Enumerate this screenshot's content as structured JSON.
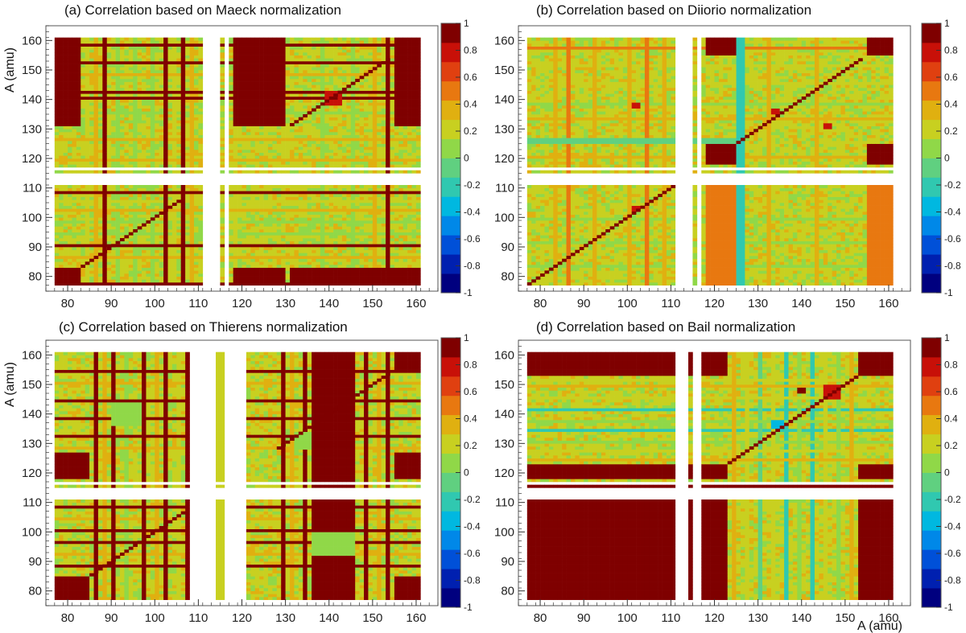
{
  "figure": {
    "xlabel": "A (amu)",
    "ylabel": "A (amu)"
  },
  "chart_data": [
    {
      "type": "heatmap",
      "title": "(a)  Correlation based on Maeck normalization",
      "xlabel": "A (amu)",
      "ylabel": "A (amu)",
      "xlim": [
        75,
        165
      ],
      "ylim": [
        75,
        165
      ],
      "xticks": [
        80,
        90,
        100,
        110,
        120,
        130,
        140,
        150,
        160
      ],
      "yticks": [
        80,
        90,
        100,
        110,
        120,
        130,
        140,
        150,
        160
      ],
      "colorbar": {
        "range": [
          -1,
          1
        ],
        "ticks": [
          "1",
          "0.8",
          "0.6",
          "0.4",
          "0.2",
          "0",
          "-0.2",
          "-0.4",
          "-0.6",
          "-0.8",
          "-1"
        ]
      },
      "palette": [
        "#00007f",
        "#0020b0",
        "#0050d8",
        "#0088e8",
        "#00b8e0",
        "#30c8b0",
        "#60d080",
        "#90d848",
        "#c8d020",
        "#e0b010",
        "#e87810",
        "#e04010",
        "#c81008",
        "#7f0000"
      ],
      "mass_range": [
        77,
        161
      ],
      "x_gaps": [
        [
          111,
          115
        ],
        [
          116,
          117
        ]
      ],
      "y_gaps": [
        [
          111,
          115
        ],
        [
          116,
          117
        ]
      ],
      "diagonal": [
        [
          83,
          106
        ],
        [
          131,
          154
        ]
      ],
      "blocks": [
        {
          "x": [
            77,
            83
          ],
          "y": [
            131,
            161
          ],
          "value": 1
        },
        {
          "x": [
            131,
            161
          ],
          "y": [
            77,
            83
          ],
          "value": 1
        },
        {
          "x": [
            77,
            83
          ],
          "y": [
            77,
            83
          ],
          "value": 1
        },
        {
          "x": [
            155,
            161
          ],
          "y": [
            131,
            161
          ],
          "value": 1
        },
        {
          "x": [
            155,
            161
          ],
          "y": [
            77,
            83
          ],
          "value": 1
        },
        {
          "x": [
            118,
            130
          ],
          "y": [
            131,
            161
          ],
          "value": 1
        },
        {
          "x": [
            118,
            130
          ],
          "y": [
            77,
            83
          ],
          "value": 1
        }
      ],
      "row_values": [
        {
          "a": 77,
          "value": 1
        },
        {
          "a": 86,
          "value": 0.3
        },
        {
          "a": 90,
          "value": 1
        },
        {
          "a": 94,
          "value": 0.1
        },
        {
          "a": 98,
          "value": 0.05
        },
        {
          "a": 102,
          "value": 0.3
        },
        {
          "a": 105,
          "value": 0.2
        },
        {
          "a": 108,
          "value": 0.9
        },
        {
          "a": 119,
          "value": 0.3
        },
        {
          "a": 126,
          "value": 0.3
        },
        {
          "a": 135,
          "value": 0.1
        },
        {
          "a": 140,
          "value": 1
        },
        {
          "a": 142,
          "value": 1
        },
        {
          "a": 148,
          "value": 0.3
        },
        {
          "a": 152,
          "value": 1
        },
        {
          "a": 158,
          "value": 1
        }
      ],
      "col_values": [
        {
          "a": 84,
          "value": 0.25
        },
        {
          "a": 86,
          "value": 0.3
        },
        {
          "a": 88,
          "value": 1
        },
        {
          "a": 91,
          "value": 0.05
        },
        {
          "a": 95,
          "value": 0.1
        },
        {
          "a": 99,
          "value": 0.05
        },
        {
          "a": 102,
          "value": 1
        },
        {
          "a": 104,
          "value": 0.2
        },
        {
          "a": 106,
          "value": 1
        },
        {
          "a": 108,
          "value": 0.3
        },
        {
          "a": 118,
          "value": 0.25
        },
        {
          "a": 138,
          "value": 0.05
        },
        {
          "a": 145,
          "value": 0.05
        },
        {
          "a": 150,
          "value": 0.3
        },
        {
          "a": 153,
          "value": 1
        }
      ],
      "hot_spots": [
        {
          "x": [
            139,
            143
          ],
          "y": [
            138,
            143
          ],
          "value": 0.8
        },
        {
          "x": [
            141,
            142
          ],
          "y": [
            140,
            141
          ],
          "value": 1
        }
      ]
    },
    {
      "type": "heatmap",
      "title": "(b)  Correlation based on Diiorio normalization",
      "xlabel": "",
      "ylabel": "",
      "xlim": [
        75,
        165
      ],
      "ylim": [
        75,
        165
      ],
      "xticks": [
        80,
        90,
        100,
        110,
        120,
        130,
        140,
        150,
        160
      ],
      "yticks": [
        80,
        90,
        100,
        110,
        120,
        130,
        140,
        150,
        160
      ],
      "colorbar": {
        "range": [
          -1,
          1
        ],
        "ticks": [
          "1",
          "0.8",
          "0.6",
          "0.4",
          "0.2",
          "0",
          "-0.2",
          "-0.4",
          "-0.6",
          "-0.8",
          "-1"
        ]
      },
      "palette": [
        "#00007f",
        "#0020b0",
        "#0050d8",
        "#0088e8",
        "#00b8e0",
        "#30c8b0",
        "#60d080",
        "#90d848",
        "#c8d020",
        "#e0b010",
        "#e87810",
        "#e04010",
        "#c81008",
        "#7f0000"
      ],
      "mass_range": [
        77,
        161
      ],
      "x_gaps": [
        [
          111,
          115
        ],
        [
          116,
          117
        ]
      ],
      "y_gaps": [
        [
          111,
          115
        ],
        [
          116,
          117
        ]
      ],
      "diagonal": [
        [
          77,
          111
        ],
        [
          125,
          154
        ]
      ],
      "blocks": [
        {
          "x": [
            118,
            125
          ],
          "y": [
            118,
            125
          ],
          "value": 1
        },
        {
          "x": [
            155,
            161
          ],
          "y": [
            155,
            161
          ],
          "value": 1
        },
        {
          "x": [
            118,
            125
          ],
          "y": [
            155,
            161
          ],
          "value": 1
        },
        {
          "x": [
            155,
            161
          ],
          "y": [
            118,
            125
          ],
          "value": 1
        },
        {
          "x": [
            155,
            161
          ],
          "y": [
            77,
            111
          ],
          "value": 0.5
        },
        {
          "x": [
            118,
            125
          ],
          "y": [
            77,
            111
          ],
          "value": 0.5
        },
        {
          "x": [
            125,
            127
          ],
          "y": [
            77,
            161
          ],
          "value": -0.2
        },
        {
          "x": [
            77,
            125
          ],
          "y": [
            125,
            127
          ],
          "value": -0.1
        }
      ],
      "row_values": [
        {
          "a": 83,
          "value": 0.1
        },
        {
          "a": 91,
          "value": 0.05
        },
        {
          "a": 99,
          "value": 0.1
        },
        {
          "a": 120,
          "value": 0.4
        },
        {
          "a": 133,
          "value": 0.3
        },
        {
          "a": 138,
          "value": 0.1
        },
        {
          "a": 145,
          "value": 0.2
        },
        {
          "a": 151,
          "value": 0.2
        },
        {
          "a": 157,
          "value": 0.5
        }
      ],
      "col_values": [
        {
          "a": 83,
          "value": 0.4
        },
        {
          "a": 86,
          "value": 0.5
        },
        {
          "a": 92,
          "value": 0.4
        },
        {
          "a": 100,
          "value": 0.4
        },
        {
          "a": 104,
          "value": 0.5
        },
        {
          "a": 108,
          "value": 0.4
        },
        {
          "a": 132,
          "value": 0.3
        },
        {
          "a": 143,
          "value": 0.3
        }
      ],
      "hot_spots": [
        {
          "x": [
            101,
            103
          ],
          "y": [
            102,
            104
          ],
          "value": 0.8
        },
        {
          "x": [
            133,
            135
          ],
          "y": [
            135,
            137
          ],
          "value": 0.8
        },
        {
          "x": [
            145,
            147
          ],
          "y": [
            130,
            132
          ],
          "value": 0.8
        },
        {
          "x": [
            101,
            103
          ],
          "y": [
            137,
            139
          ],
          "value": 0.8
        }
      ]
    },
    {
      "type": "heatmap",
      "title": "(c)  Correlation based on Thierens normalization",
      "xlabel": "",
      "ylabel": "A (amu)",
      "xlim": [
        75,
        165
      ],
      "ylim": [
        75,
        165
      ],
      "xticks": [
        80,
        90,
        100,
        110,
        120,
        130,
        140,
        150,
        160
      ],
      "yticks": [
        80,
        90,
        100,
        110,
        120,
        130,
        140,
        150,
        160
      ],
      "colorbar": {
        "range": [
          -1,
          1
        ],
        "ticks": [
          "1",
          "0.8",
          "0.6",
          "0.4",
          "0.2",
          "0",
          "-0.2",
          "-0.4",
          "-0.6",
          "-0.8",
          "-1"
        ]
      },
      "palette": [
        "#00007f",
        "#0020b0",
        "#0050d8",
        "#0088e8",
        "#00b8e0",
        "#30c8b0",
        "#60d080",
        "#90d848",
        "#c8d020",
        "#e0b010",
        "#e87810",
        "#e04010",
        "#c81008",
        "#7f0000"
      ],
      "mass_range": [
        77,
        161
      ],
      "x_gaps": [
        [
          108,
          114
        ],
        [
          116,
          121
        ]
      ],
      "y_gaps": [
        [
          111,
          115
        ],
        [
          116,
          117
        ]
      ],
      "diagonal": [
        [
          85,
          107
        ],
        [
          128,
          154
        ]
      ],
      "blocks": [
        {
          "x": [
            77,
            85
          ],
          "y": [
            77,
            85
          ],
          "value": 1
        },
        {
          "x": [
            77,
            85
          ],
          "y": [
            118,
            127
          ],
          "value": 1
        },
        {
          "x": [
            155,
            161
          ],
          "y": [
            118,
            127
          ],
          "value": 1
        },
        {
          "x": [
            155,
            161
          ],
          "y": [
            77,
            85
          ],
          "value": 1
        },
        {
          "x": [
            155,
            161
          ],
          "y": [
            155,
            161
          ],
          "value": 1
        },
        {
          "x": [
            136,
            146
          ],
          "y": [
            77,
            161
          ],
          "value": 0.9
        },
        {
          "x": [
            114,
            116
          ],
          "y": [
            77,
            161
          ],
          "value": 0.25
        }
      ],
      "row_values": [
        {
          "a": 88,
          "value": 1
        },
        {
          "a": 92,
          "value": 0.3
        },
        {
          "a": 96,
          "value": 0.9
        },
        {
          "a": 100,
          "value": 1
        },
        {
          "a": 104,
          "value": 0.3
        },
        {
          "a": 108,
          "value": 1
        },
        {
          "a": 128,
          "value": 0.3
        },
        {
          "a": 132,
          "value": 1
        },
        {
          "a": 138,
          "value": 0.9
        },
        {
          "a": 144,
          "value": 1
        },
        {
          "a": 150,
          "value": 0.3
        },
        {
          "a": 154,
          "value": 1
        }
      ],
      "col_values": [
        {
          "a": 86,
          "value": 1
        },
        {
          "a": 88,
          "value": 0.3
        },
        {
          "a": 90,
          "value": 1
        },
        {
          "a": 93,
          "value": 0.1
        },
        {
          "a": 97,
          "value": 1
        },
        {
          "a": 100,
          "value": 0.3
        },
        {
          "a": 102,
          "value": 1
        },
        {
          "a": 105,
          "value": 0.2
        },
        {
          "a": 107,
          "value": 1
        },
        {
          "a": 129,
          "value": 1
        },
        {
          "a": 131,
          "value": 0.3
        },
        {
          "a": 134,
          "value": 1
        },
        {
          "a": 148,
          "value": 1
        },
        {
          "a": 151,
          "value": 0.3
        },
        {
          "a": 153,
          "value": 1
        }
      ],
      "hot_spots": [
        {
          "x": [
            90,
            97
          ],
          "y": [
            136,
            144
          ],
          "value": 0.05
        },
        {
          "x": [
            132,
            136
          ],
          "y": [
            128,
            134
          ],
          "value": 0.05
        },
        {
          "x": [
            136,
            146
          ],
          "y": [
            92,
            100
          ],
          "value": 0.05
        }
      ]
    },
    {
      "type": "heatmap",
      "title": "(d)  Correlation based on Bail normalization",
      "xlabel": "A (amu)",
      "ylabel": "",
      "xlim": [
        75,
        165
      ],
      "ylim": [
        75,
        165
      ],
      "xticks": [
        80,
        90,
        100,
        110,
        120,
        130,
        140,
        150,
        160
      ],
      "yticks": [
        80,
        90,
        100,
        110,
        120,
        130,
        140,
        150,
        160
      ],
      "colorbar": {
        "range": [
          -1,
          1
        ],
        "ticks": [
          "1",
          "0.8",
          "0.6",
          "0.4",
          "0.2",
          "0",
          "-0.2",
          "-0.4",
          "-0.6",
          "-0.8",
          "-1"
        ]
      },
      "palette": [
        "#00007f",
        "#0020b0",
        "#0050d8",
        "#0088e8",
        "#00b8e0",
        "#30c8b0",
        "#60d080",
        "#90d848",
        "#c8d020",
        "#e0b010",
        "#e87810",
        "#e04010",
        "#c81008",
        "#7f0000"
      ],
      "mass_range": [
        77,
        161
      ],
      "x_gaps": [
        [
          111,
          114
        ],
        [
          115,
          117
        ]
      ],
      "y_gaps": [
        [
          111,
          115
        ],
        [
          116,
          117
        ]
      ],
      "diagonal": [
        [
          123,
          153
        ]
      ],
      "blocks": [
        {
          "x": [
            77,
            123
          ],
          "y": [
            77,
            111
          ],
          "value": 1
        },
        {
          "x": [
            153,
            161
          ],
          "y": [
            77,
            111
          ],
          "value": 1
        },
        {
          "x": [
            77,
            123
          ],
          "y": [
            153,
            161
          ],
          "value": 1
        },
        {
          "x": [
            153,
            161
          ],
          "y": [
            153,
            161
          ],
          "value": 1
        },
        {
          "x": [
            77,
            123
          ],
          "y": [
            118,
            123
          ],
          "value": 1
        },
        {
          "x": [
            153,
            161
          ],
          "y": [
            118,
            123
          ],
          "value": 1
        },
        {
          "x": [
            77,
            161
          ],
          "y": [
            115,
            116
          ],
          "value": 1
        }
      ],
      "row_values": [
        {
          "a": 124,
          "value": 0.4
        },
        {
          "a": 127,
          "value": 0.25
        },
        {
          "a": 130,
          "value": 0.05
        },
        {
          "a": 134,
          "value": -0.2
        },
        {
          "a": 137,
          "value": 0.1
        },
        {
          "a": 141,
          "value": -0.2
        },
        {
          "a": 145,
          "value": 0.25
        },
        {
          "a": 149,
          "value": 0.4
        },
        {
          "a": 151,
          "value": 0.2
        }
      ],
      "col_values": [
        {
          "a": 124,
          "value": 0.4
        },
        {
          "a": 127,
          "value": 0.25
        },
        {
          "a": 130,
          "value": -0.1
        },
        {
          "a": 133,
          "value": 0.2
        },
        {
          "a": 136,
          "value": -0.2
        },
        {
          "a": 139,
          "value": 0.1
        },
        {
          "a": 142,
          "value": -0.2
        },
        {
          "a": 145,
          "value": 0.25
        },
        {
          "a": 148,
          "value": 0.05
        },
        {
          "a": 151,
          "value": 0.3
        }
      ],
      "hot_spots": [
        {
          "x": [
            145,
            149
          ],
          "y": [
            145,
            150
          ],
          "value": 0.8
        },
        {
          "x": [
            139,
            141
          ],
          "y": [
            147,
            149
          ],
          "value": 0.9
        },
        {
          "x": [
            133,
            136
          ],
          "y": [
            135,
            138
          ],
          "value": -0.3
        }
      ]
    }
  ]
}
